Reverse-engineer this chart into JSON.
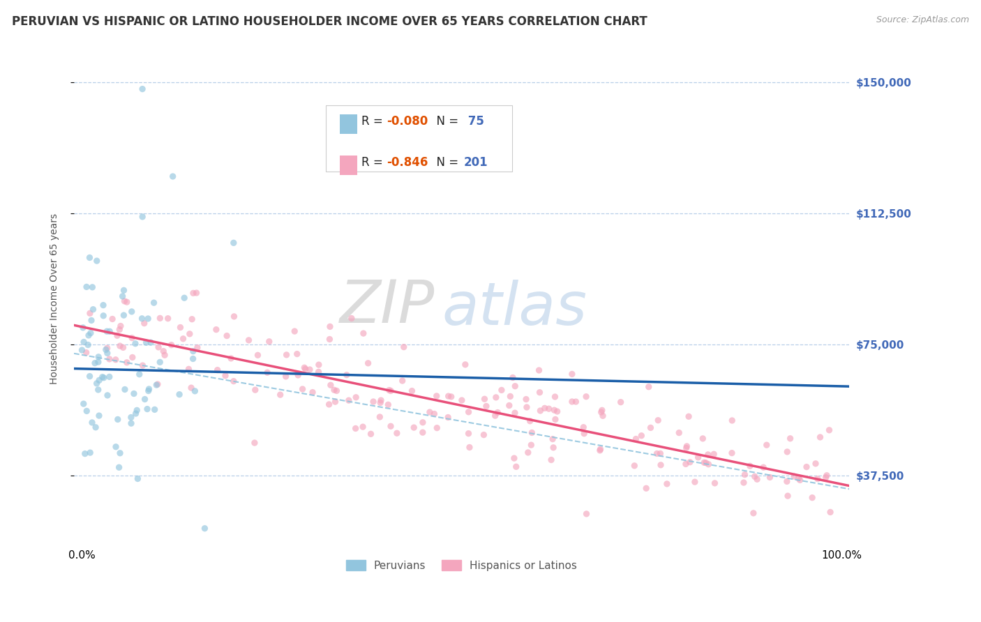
{
  "title": "PERUVIAN VS HISPANIC OR LATINO HOUSEHOLDER INCOME OVER 65 YEARS CORRELATION CHART",
  "source": "Source: ZipAtlas.com",
  "ylabel": "Householder Income Over 65 years",
  "ytick_labels": [
    "$37,500",
    "$75,000",
    "$112,500",
    "$150,000"
  ],
  "ytick_values": [
    37500,
    75000,
    112500,
    150000
  ],
  "ymin": 18000,
  "ymax": 158000,
  "xmin": -0.01,
  "xmax": 1.01,
  "watermark_zip": "ZIP",
  "watermark_atlas": "atlas",
  "legend_label_blue": "Peruvians",
  "legend_label_pink": "Hispanics or Latinos",
  "peruvian_color": "#92c5de",
  "hispanic_color": "#f4a6be",
  "peruvian_line_color": "#1a5ea8",
  "hispanic_line_color": "#e8507a",
  "dashed_line_color": "#92c5de",
  "R_peruvian": -0.08,
  "N_peruvian": 75,
  "R_hispanic": -0.846,
  "N_hispanic": 201,
  "peruvian_intercept": 68000,
  "peruvian_slope": -5000,
  "hispanic_intercept": 80000,
  "hispanic_slope": -45000,
  "dashed_intercept": 72000,
  "dashed_slope": -38000,
  "title_fontsize": 12,
  "axis_label_fontsize": 10,
  "tick_fontsize": 11,
  "background_color": "#ffffff",
  "grid_color": "#b8cfe8",
  "scatter_alpha": 0.65,
  "scatter_size": 45,
  "legend_r_color": "#1a5ea8",
  "legend_n_color": "#1a5ea8"
}
